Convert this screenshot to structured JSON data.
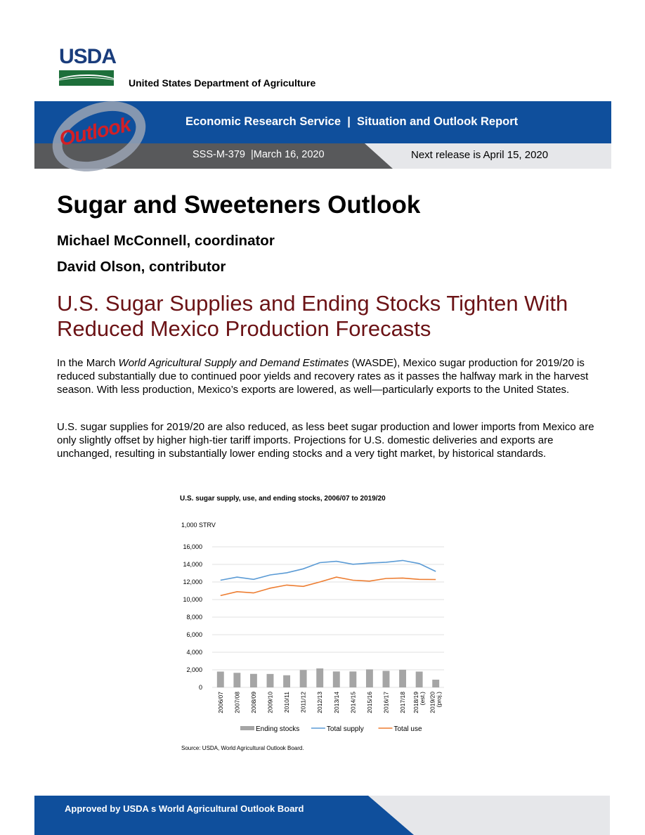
{
  "logo": {
    "text": "USDA",
    "department": "United States Department of Agriculture"
  },
  "banner": {
    "brand": "Outlook",
    "title": "Economic Research Service  |  Situation and Outlook Report",
    "report_id": "SSS-M-379  |March 16, 2020",
    "next_release": "Next release is April 15, 2020"
  },
  "report": {
    "title": "Sugar and Sweeteners Outlook",
    "coordinator": "Michael McConnell, coordinator",
    "contributor": "David Olson, contributor",
    "headline": "U.S. Sugar Supplies and Ending Stocks Tighten With Reduced Mexico Production Forecasts"
  },
  "body": {
    "para1_prefix": "In the March ",
    "para1_italic": "World Agricultural Supply and Demand Estimates",
    "para1_suffix": " (WASDE), Mexico sugar production for 2019/20 is reduced substantially due to continued poor yields and recovery rates as it passes the halfway mark in the harvest season.  With less production, Mexico’s exports are lowered, as well—particularly exports to the United States.",
    "para2": "U.S. sugar supplies for 2019/20 are also reduced, as less beet sugar production and lower imports from Mexico are only slightly offset by higher high-tier tariff imports.  Projections for U.S. domestic deliveries and exports are unchanged, resulting in substantially lower ending stocks and a very tight market, by historical standards."
  },
  "chart_data": {
    "type": "bar",
    "title": "U.S. sugar supply, use, and ending stocks, 2006/07 to 2019/20",
    "ylabel": "1,000 STRV",
    "ylim": [
      0,
      16000
    ],
    "yticks": [
      "0",
      "2,000",
      "4,000",
      "6,000",
      "8,000",
      "10,000",
      "12,000",
      "14,000",
      "16,000"
    ],
    "categories": [
      "2006/07",
      "2007/08",
      "2008/09",
      "2009/10",
      "2010/11",
      "2011/12",
      "2012/13",
      "2013/14",
      "2014/15",
      "2015/16",
      "2016/17",
      "2017/18",
      "2018/19\n(est.)",
      "2019/20\n(proj.)"
    ],
    "series": [
      {
        "name": "Ending stocks",
        "kind": "bar",
        "color": "#a5a5a5",
        "values": [
          1800,
          1660,
          1540,
          1530,
          1380,
          1980,
          2160,
          1810,
          1810,
          2050,
          1880,
          2010,
          1800,
          880
        ]
      },
      {
        "name": "Total supply",
        "kind": "line",
        "color": "#5b9bd5",
        "values": [
          12200,
          12550,
          12300,
          12800,
          13050,
          13500,
          14200,
          14350,
          14020,
          14150,
          14250,
          14450,
          14100,
          13200
        ]
      },
      {
        "name": "Total use",
        "kind": "line",
        "color": "#ed7d31",
        "values": [
          10450,
          10900,
          10750,
          11300,
          11650,
          11500,
          12000,
          12550,
          12200,
          12100,
          12400,
          12450,
          12300,
          12280
        ]
      }
    ],
    "legend": "bottom",
    "grid": true,
    "source": "Source: USDA, World Agricultural Outlook Board."
  },
  "footer": {
    "text": "Approved by USDA s World Agricultural Outlook Board"
  }
}
